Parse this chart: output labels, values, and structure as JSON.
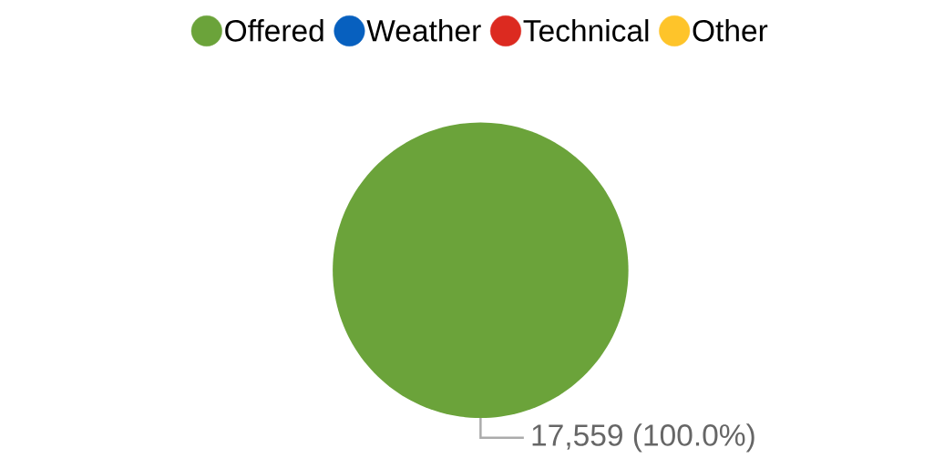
{
  "chart_data": {
    "type": "pie",
    "categories": [
      "Offered",
      "Weather",
      "Technical",
      "Other"
    ],
    "values": [
      17559,
      0,
      0,
      0
    ],
    "colors": [
      "#6ba33a",
      "#0760bf",
      "#dc2a20",
      "#fec42a"
    ],
    "value_labels": [
      "17,559 (100.0%)",
      null,
      null,
      null
    ],
    "legend": "top"
  }
}
